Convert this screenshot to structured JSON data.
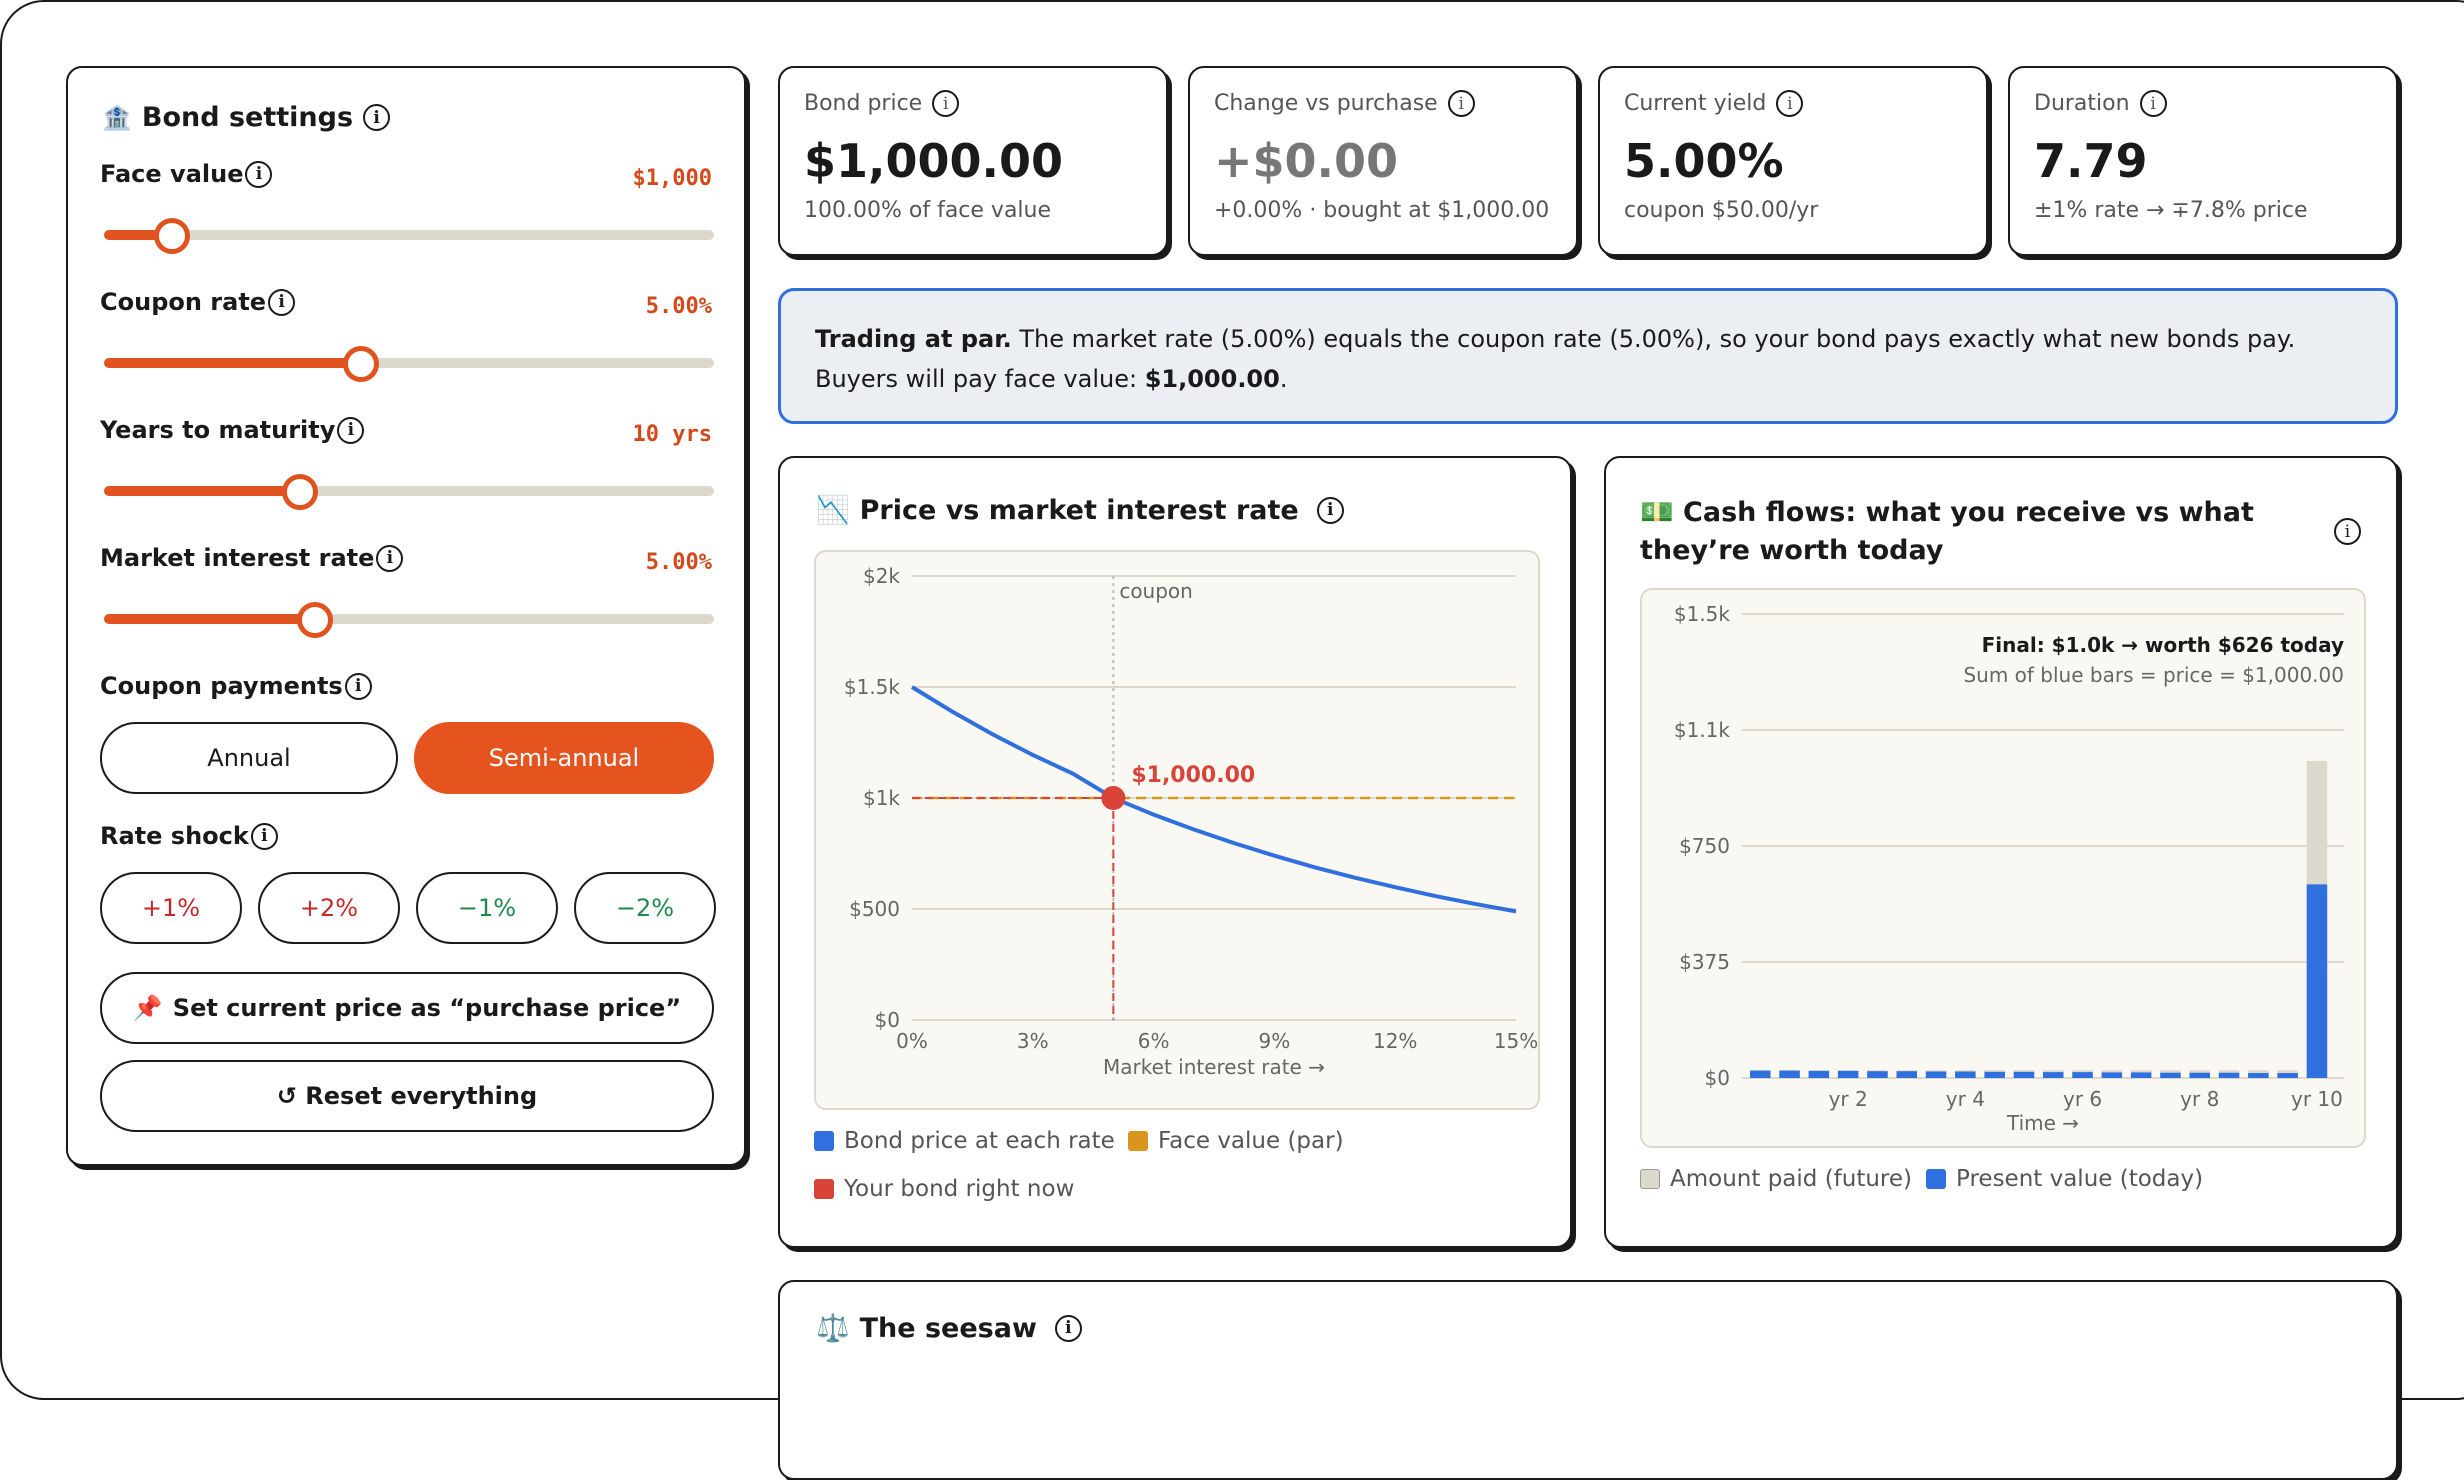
{
  "settings": {
    "title": "Bond settings",
    "face_value": {
      "label": "Face value",
      "value": "$1,000",
      "fraction": 0.11
    },
    "coupon_rate": {
      "label": "Coupon rate",
      "value": "5.00%",
      "fraction": 0.42
    },
    "years": {
      "label": "Years to maturity",
      "value": "10 yrs",
      "fraction": 0.32
    },
    "market_rate": {
      "label": "Market interest rate",
      "value": "5.00%",
      "fraction": 0.345
    },
    "payments": {
      "label": "Coupon payments",
      "annual": "Annual",
      "semi": "Semi-annual",
      "selected": "Semi-annual"
    },
    "shock": {
      "label": "Rate shock",
      "plus1": "+1%",
      "plus2": "+2%",
      "minus1": "−1%",
      "minus2": "−2%"
    },
    "set_purchase": "Set current price as “purchase price”",
    "reset": "↺ Reset everything"
  },
  "stats": {
    "price": {
      "label": "Bond price",
      "value": "$1,000.00",
      "sub": "100.00% of face value"
    },
    "change": {
      "label": "Change vs purchase",
      "value": "+$0.00",
      "sub": "+0.00% · bought at $1,000.00"
    },
    "yield": {
      "label": "Current yield",
      "value": "5.00%",
      "sub": "coupon $50.00/yr"
    },
    "duration": {
      "label": "Duration",
      "value": "7.79",
      "sub": "±1% rate → ∓7.8% price"
    }
  },
  "banner": {
    "bold": "Trading at par.",
    "text": " The market rate (5.00%) equals the coupon rate (5.00%), so your bond pays exactly what new bonds pay. Buyers will pay face value: ",
    "price": "$1,000.00",
    "end": "."
  },
  "seesaw": {
    "title": "The seesaw"
  },
  "colors": {
    "accent": "#e5531f",
    "blue": "#2f6fde",
    "amber": "#d9961e",
    "red": "#d9443a",
    "beige": "#ddd8cc"
  },
  "chart_data": [
    {
      "type": "line",
      "title": "Price vs market interest rate",
      "xlabel": "Market interest rate →",
      "ylabel": "",
      "x_ticks": [
        "0%",
        "3%",
        "6%",
        "9%",
        "12%",
        "15%"
      ],
      "x_tick_values": [
        0,
        3,
        6,
        9,
        12,
        15
      ],
      "y_ticks": [
        "$0",
        "$500",
        "$1k",
        "$1.5k",
        "$2k"
      ],
      "y_tick_values": [
        0,
        500,
        1000,
        1500,
        2000
      ],
      "xlim": [
        0,
        15
      ],
      "ylim": [
        0,
        2000
      ],
      "coupon_line_label": "coupon",
      "coupon_x": 5,
      "par_value": 1000,
      "point": {
        "x": 5,
        "y": 1000,
        "label": "$1,000.00"
      },
      "series": [
        {
          "name": "Bond price at each rate",
          "x": [
            0,
            1,
            2,
            3,
            4,
            5,
            6,
            7,
            8,
            9,
            10,
            11,
            12,
            13,
            14,
            15
          ],
          "values": [
            1500,
            1389,
            1287,
            1194,
            1109,
            1000,
            925,
            858,
            797,
            740,
            688,
            641,
            598,
            558,
            522,
            489
          ]
        }
      ],
      "legend": [
        "Bond price at each rate",
        "Face value (par)",
        "Your bond right now"
      ],
      "legend_position": "bottom",
      "grid": true
    },
    {
      "type": "bar",
      "title": "Cash flows: what you receive vs what they’re worth today",
      "xlabel": "Time →",
      "ylabel": "",
      "x_ticks": [
        "yr 2",
        "yr 4",
        "yr 6",
        "yr 8",
        "yr 10"
      ],
      "y_ticks": [
        "$0",
        "$375",
        "$750",
        "$1.1k",
        "$1.5k"
      ],
      "y_tick_values": [
        0,
        375,
        750,
        1125,
        1500
      ],
      "ylim": [
        0,
        1500
      ],
      "annotation_bold": "Final: $1.0k → worth $626 today",
      "annotation": "Sum of blue bars = price = $1,000.00",
      "periods": 20,
      "amount_paid": [
        25,
        25,
        25,
        25,
        25,
        25,
        25,
        25,
        25,
        25,
        25,
        25,
        25,
        25,
        25,
        25,
        25,
        25,
        25,
        1025
      ],
      "present_value": [
        24,
        24,
        23,
        23,
        22,
        22,
        21,
        21,
        20,
        20,
        19,
        19,
        18,
        18,
        17,
        17,
        17,
        16,
        16,
        626
      ],
      "legend": [
        "Amount paid (future)",
        "Present value (today)"
      ],
      "legend_position": "bottom",
      "grid": true
    }
  ]
}
